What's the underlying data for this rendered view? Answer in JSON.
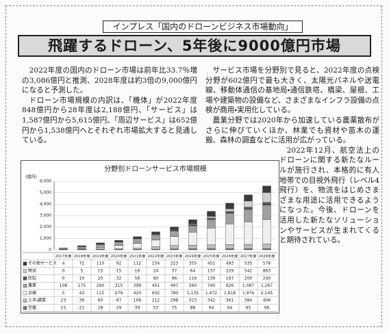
{
  "header": {
    "kicker": "インプレス「国内のドローンビジネス市場動向」",
    "title": "飛躍するドローン、5年後に9000億円市場"
  },
  "article": {
    "left": [
      "2022年度の国内のドローン市場は前年比33.7％増の3,086億円と推測、2028年度は約3倍の9,000億円になると予測した。",
      "ドローン市場規模の内訳は、「機体」が2022年度848億円から28年度は2,188億円、「サービス」は1,587億円から5,615億円、「周辺サービス」は652億円から1,538億円へとそれぞれ市場拡大すると見通している。"
    ],
    "right": [
      "サービス市場を分野別で見ると、2022年度の点検分野が602億円で最も大きく、太陽光パネルや送電線、移動体通信の基地局・通信鉄塔、橋梁、屋根、工場や建築物の設備など、さまざまなインフラ設備の点検が商用・実用化している。",
      "農業分野では2020年から加速している農薬散布がさらに伸びていくほか、林業でも資材や苗木の運搬、森林の調査などに活用が広がっている。",
      "2022年12月、航空法上のドローンに関する新たなルールが施行され、本格的に有人地帯での目視外飛行（レベル4飛行）を、物流をはじめさまざまな用途に活用できるようになった。今後、ドローンを活用した新たなソリューションやサービスが生まれてくると期待されている。"
    ]
  },
  "chart_data": {
    "type": "stacked-bar",
    "title": "分野別ドローンサービス市場規模",
    "unit": "(億円)",
    "categories": [
      "2017年度",
      "2018年度",
      "2019年度",
      "2020年度",
      "2021年度",
      "2022年度",
      "2023年度",
      "2024年度",
      "2025年度",
      "2026年度",
      "2027年度",
      "2028年度"
    ],
    "ylim": [
      0,
      6000
    ],
    "yticks": [
      0,
      {
        "value": 1000,
        "label": "1,000"
      },
      {
        "value": 2000,
        "label": "2,000"
      },
      {
        "value": 3000,
        "label": "3,000"
      },
      {
        "value": 4000,
        "label": "4,000"
      },
      {
        "value": 5000,
        "label": "5,000"
      },
      {
        "value": 6000,
        "label": "6,000"
      }
    ],
    "grid": true,
    "series": [
      {
        "name": "その他サービス",
        "color": "#3a3a3a",
        "values": [
          4,
          72,
          110,
          92,
          112,
          154,
          223,
          355,
          451,
          493,
          535,
          578
        ]
      },
      {
        "name": "物流",
        "color": "#d0d0d0",
        "values": [
          0,
          5,
          15,
          15,
          16,
          24,
          37,
          64,
          137,
          229,
          542,
          863
        ]
      },
      {
        "name": "防犯",
        "color": "#555555",
        "values": [
          0,
          10,
          20,
          32,
          56,
          80,
          96,
          116,
          139,
          167,
          200,
          240
        ]
      },
      {
        "name": "農業",
        "color": "#a0a0a0",
        "values": [
          108,
          175,
          260,
          315,
          399,
          451,
          497,
          560,
          740,
          926,
          1087,
          1267
        ],
        "value_labels": [
          "108",
          "175",
          "260",
          "315",
          "399",
          "451",
          "497",
          "560",
          "740",
          "926",
          "1,087",
          "1,267"
        ]
      },
      {
        "name": "点検",
        "color": "#efefef",
        "values": [
          5,
          43,
          115,
          279,
          420,
          602,
          780,
          1135,
          1472,
          1818,
          1976,
          2145
        ],
        "value_labels": [
          "5",
          "43",
          "115",
          "279",
          "420",
          "602",
          "780",
          "1,135",
          "1,472",
          "1,818",
          "1,976",
          "2,145"
        ]
      },
      {
        "name": "土木・建築",
        "color": "#bdbdbd",
        "values": [
          23,
          36,
          60,
          67,
          106,
          212,
          298,
          323,
          342,
          361,
          384,
          406
        ]
      },
      {
        "name": "空撮",
        "color": "#777777",
        "values": [
          15,
          21,
          28,
          29,
          39,
          53,
          75,
          88,
          94,
          94,
          95,
          96
        ]
      }
    ]
  }
}
